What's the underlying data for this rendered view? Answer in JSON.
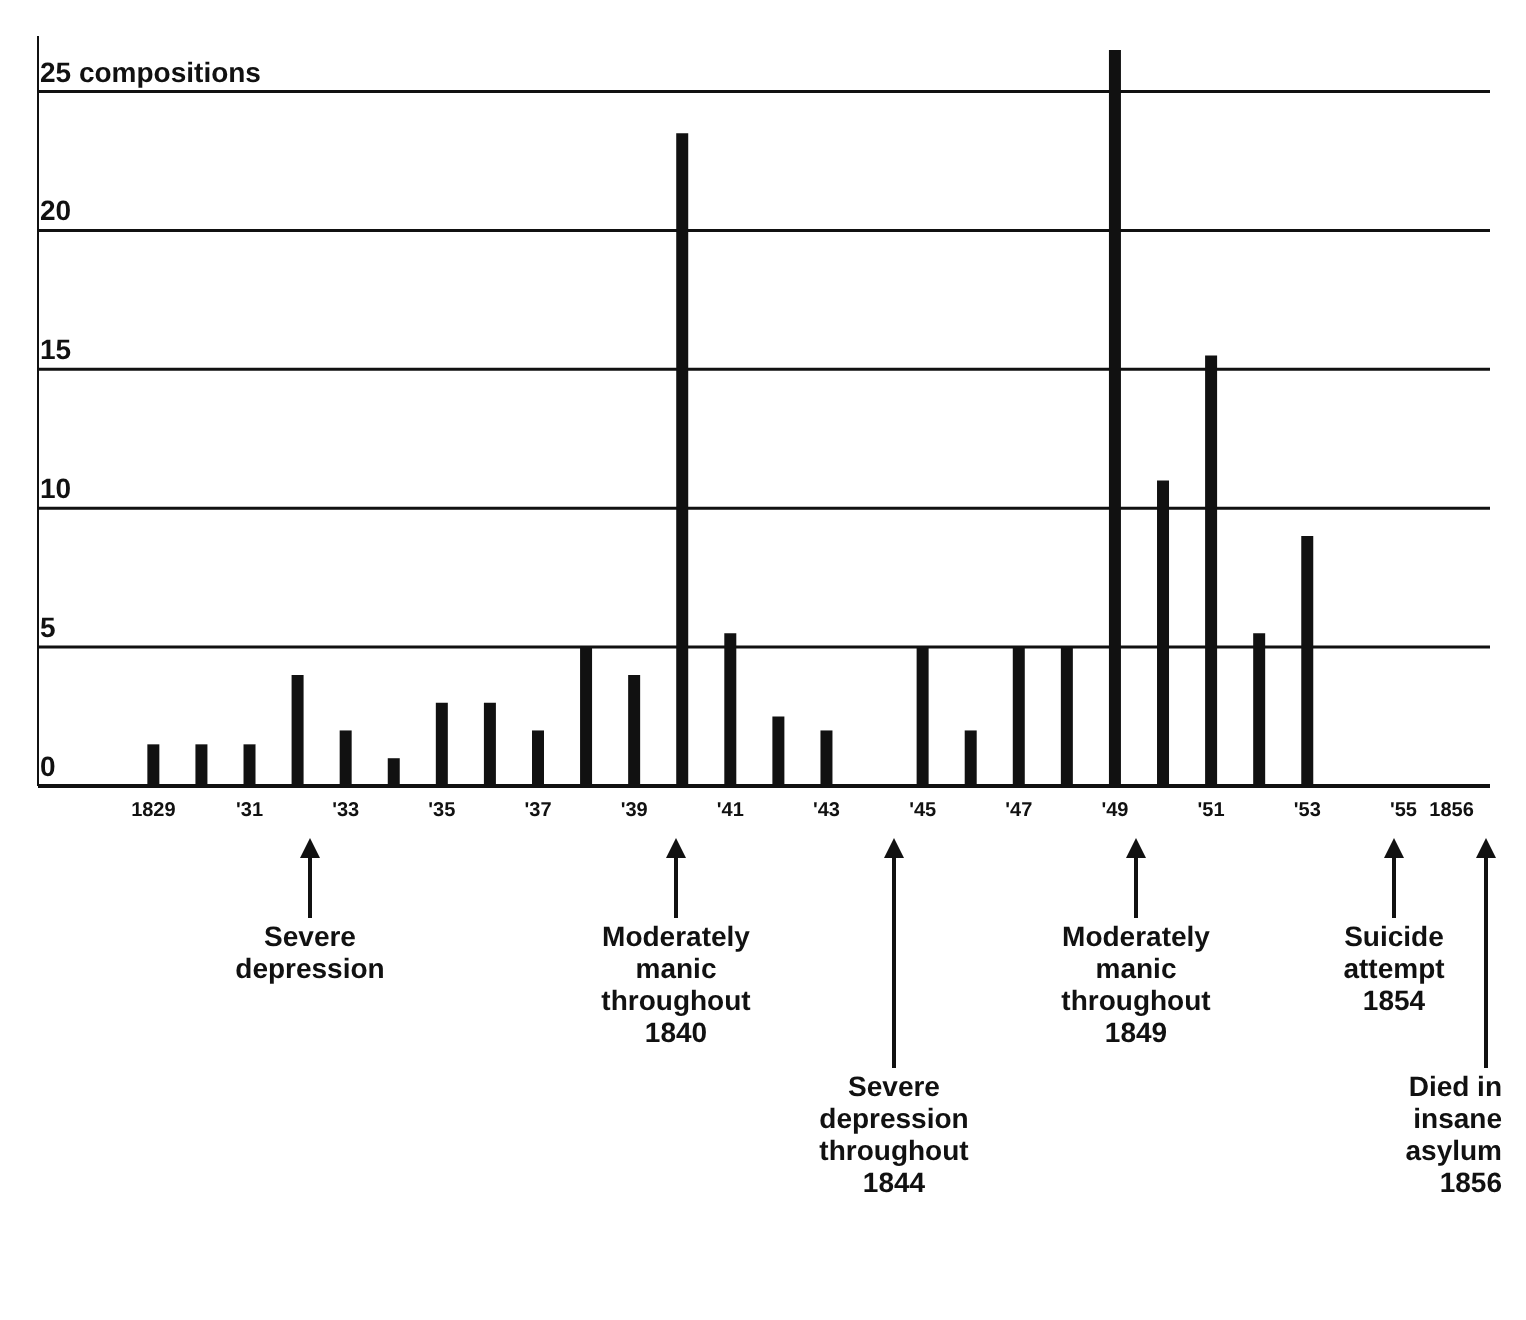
{
  "chart_data": {
    "type": "bar",
    "x": [
      1829,
      1830,
      1831,
      1832,
      1833,
      1834,
      1835,
      1836,
      1837,
      1838,
      1839,
      1840,
      1841,
      1842,
      1843,
      1844,
      1845,
      1846,
      1847,
      1848,
      1849,
      1850,
      1851,
      1852,
      1853,
      1854,
      1855
    ],
    "values": [
      1.5,
      1.5,
      1.5,
      4,
      2,
      1,
      3,
      3,
      2,
      5,
      4,
      23.5,
      5.5,
      2.5,
      2,
      0,
      5,
      2,
      5,
      5,
      26.5,
      11,
      15.5,
      5.5,
      9,
      0,
      0
    ],
    "color": "#111111",
    "xlim": [
      1826.6,
      1856.8
    ],
    "xticks": [
      {
        "value": 1829,
        "label": "1829"
      },
      {
        "value": 1831,
        "label": "'31"
      },
      {
        "value": 1833,
        "label": "'33"
      },
      {
        "value": 1835,
        "label": "'35"
      },
      {
        "value": 1837,
        "label": "'37"
      },
      {
        "value": 1839,
        "label": "'39"
      },
      {
        "value": 1841,
        "label": "'41"
      },
      {
        "value": 1843,
        "label": "'43"
      },
      {
        "value": 1845,
        "label": "'45"
      },
      {
        "value": 1847,
        "label": "'47"
      },
      {
        "value": 1849,
        "label": "'49"
      },
      {
        "value": 1851,
        "label": "'51"
      },
      {
        "value": 1853,
        "label": "'53"
      },
      {
        "value": 1855,
        "label": "'55"
      },
      {
        "value": 1856,
        "label": "1856"
      }
    ],
    "ylim": [
      0,
      27
    ],
    "yticks": [
      0,
      5,
      10,
      15,
      20,
      {
        "value": 25,
        "label": "25 compositions"
      }
    ],
    "grid": "y",
    "annotations": [
      "Severe depression",
      "Moderately manic throughout 1840",
      "Severe depression throughout 1844",
      "Moderately manic throughout 1849",
      "Suicide attempt 1854",
      "Died in insane asylum 1856"
    ]
  }
}
